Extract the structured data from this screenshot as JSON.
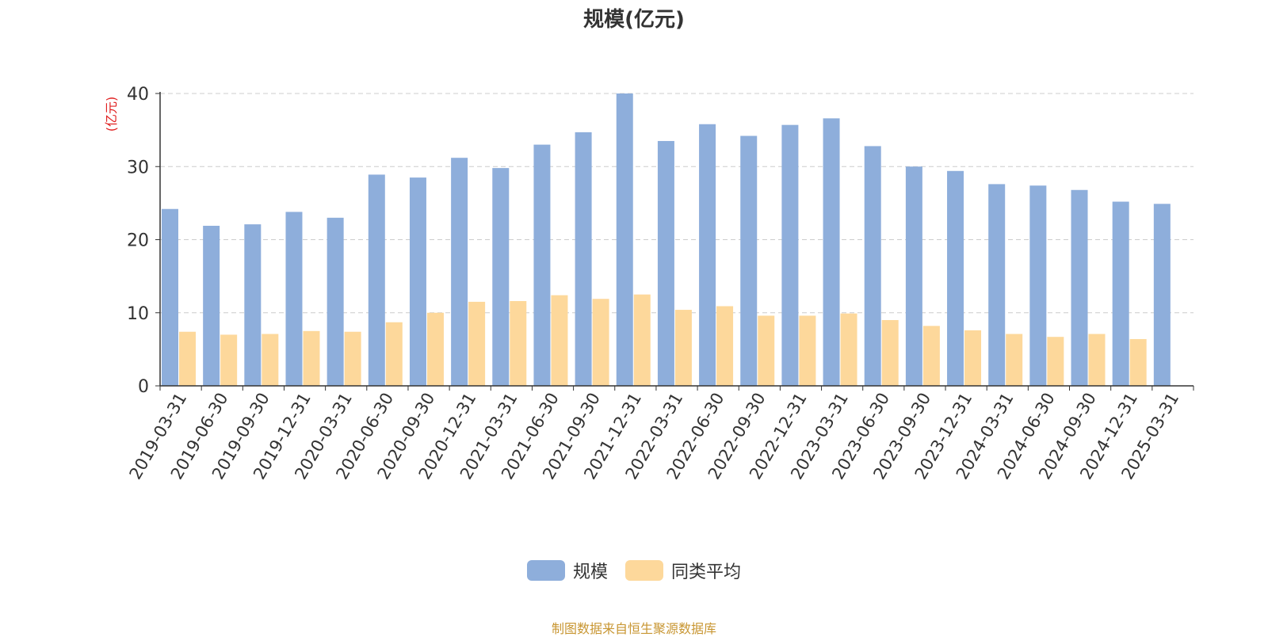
{
  "chart_data": {
    "type": "bar",
    "title": "规模(亿元)",
    "ylabel": "(亿元)",
    "xlabel": "",
    "ylim": [
      0,
      40
    ],
    "yticks": [
      0,
      10,
      20,
      30,
      40
    ],
    "grid": true,
    "legend_position": "bottom",
    "categories": [
      "2019-03-31",
      "2019-06-30",
      "2019-09-30",
      "2019-12-31",
      "2020-03-31",
      "2020-06-30",
      "2020-09-30",
      "2020-12-31",
      "2021-03-31",
      "2021-06-30",
      "2021-09-30",
      "2021-12-31",
      "2022-03-31",
      "2022-06-30",
      "2022-09-30",
      "2022-12-31",
      "2023-03-31",
      "2023-06-30",
      "2023-09-30",
      "2023-12-31",
      "2024-03-31",
      "2024-06-30",
      "2024-09-30",
      "2024-12-31",
      "2025-03-31"
    ],
    "series": [
      {
        "name": "规模",
        "color": "#8eaedb",
        "values": [
          24.2,
          21.9,
          22.1,
          23.8,
          23.0,
          28.9,
          28.5,
          31.2,
          29.8,
          33.0,
          34.7,
          40.0,
          33.5,
          35.8,
          34.2,
          35.7,
          36.6,
          32.8,
          30.0,
          29.4,
          27.6,
          27.4,
          26.8,
          25.2,
          24.9
        ]
      },
      {
        "name": "同类平均",
        "color": "#fdd89b",
        "values": [
          7.4,
          7.0,
          7.1,
          7.5,
          7.4,
          8.7,
          10.0,
          11.5,
          11.6,
          12.4,
          11.9,
          12.5,
          10.4,
          10.9,
          9.6,
          9.6,
          9.9,
          9.0,
          8.2,
          7.6,
          7.1,
          6.7,
          7.1,
          6.4,
          null
        ]
      }
    ]
  },
  "footer": {
    "source": "制图数据来自恒生聚源数据库"
  }
}
